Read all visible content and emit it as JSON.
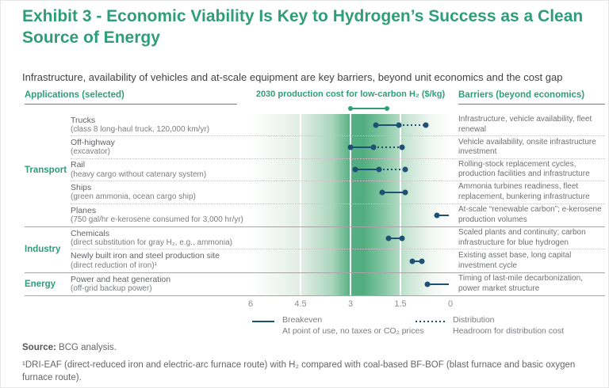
{
  "title": {
    "line1": "Exhibit 3 - Economic Viability Is Key to Hydrogen’s Success as a Clean",
    "line2": "Source of Energy"
  },
  "subtitle": "Infrastructure, availability of vehicles and at-scale equipment are key barriers, beyond unit economics and the cost gap",
  "columns": {
    "applications": "Applications (selected)",
    "chart": "2030 production cost for low-carbon H₂ ($/kg)",
    "barriers": "Barriers (beyond economics)"
  },
  "colors": {
    "green": "#2f9e77",
    "navy": "#1f5173",
    "gradient_peak": "#4fad7f"
  },
  "chart_data": {
    "type": "dot-range",
    "units": "$/kg",
    "axis": {
      "label": "2030 production cost for low-carbon H₂ ($/kg)",
      "ticks": [
        6,
        4.5,
        3,
        1.5,
        0
      ],
      "min": 0,
      "max": 6,
      "reversed": true,
      "gridlines": [
        4.5,
        3,
        1.5
      ]
    },
    "production_cost_range_2030": [
      3.0,
      1.9
    ],
    "groups": [
      {
        "category": "Transport",
        "rows": [
          {
            "application": "Trucks",
            "detail": "(class 8 long-haul truck, 120,000 km/yr)",
            "breakeven": [
              2.25,
              1.55
            ],
            "distribution": 0.75,
            "barrier": "Infrastructure, vehicle availability, fleet renewal"
          },
          {
            "application": "Off-highway",
            "detail": "(excavator)",
            "breakeven": [
              3.0,
              2.3
            ],
            "distribution": 1.45,
            "barrier": "Vehicle availability, onsite infrastructure investment"
          },
          {
            "application": "Rail",
            "detail": "(heavy cargo without catenary system)",
            "breakeven": [
              2.85,
              2.15
            ],
            "distribution": 1.35,
            "barrier": "Rolling-stock replacement cycles, production facilities and infrastructure"
          },
          {
            "application": "Ships",
            "detail": "(green ammonia, ocean cargo ship)",
            "breakeven": [
              2.05,
              1.35
            ],
            "distribution": null,
            "barrier": "Ammonia turbines readiness, fleet replacement, bunkering infrastructure"
          },
          {
            "application": "Planes",
            "detail": "(750 gal/hr e-kerosene consumed for 3,000 hr/yr)",
            "breakeven": [
              0.4,
              0.05
            ],
            "distribution": null,
            "end_dot": false,
            "barrier": "At-scale “renewable carbon”; e-kerosene production volumes"
          }
        ]
      },
      {
        "category": "Industry",
        "rows": [
          {
            "application": "Chemicals",
            "detail": "(direct substitution for gray H₂, e.g., ammonia)",
            "breakeven": [
              1.85,
              1.45
            ],
            "distribution": null,
            "barrier": "Scaled plants and continuity; carbon infrastructure for blue hydrogen"
          },
          {
            "application": "Newly built iron and steel production site",
            "detail": "(direct reduction of iron)¹",
            "breakeven": [
              1.15,
              0.85
            ],
            "distribution": null,
            "barrier": "Existing asset base, long capital investment cycle"
          }
        ]
      },
      {
        "category": "Energy",
        "rows": [
          {
            "application": "Power and heat generation",
            "detail": "(off-grid backup power)",
            "breakeven": [
              0.7,
              0.05
            ],
            "distribution": null,
            "end_dot": false,
            "barrier": "Timing of last-mile decarbonization, power market structure"
          }
        ]
      }
    ]
  },
  "legend": [
    {
      "style": "solid",
      "label": "Breakeven",
      "sublabel": "At point of use, no taxes or CO₂ prices"
    },
    {
      "style": "dashed",
      "label": "Distribution",
      "sublabel": "Headroom for distribution cost"
    }
  ],
  "footer": {
    "source_label": "Source:",
    "source_text": " BCG analysis.",
    "footnote": "¹DRI-EAF (direct-reduced iron and electric-arc furnace route) with H₂ compared with coal-based BF-BOF (blast furnace and basic oxygen furnace route)."
  }
}
